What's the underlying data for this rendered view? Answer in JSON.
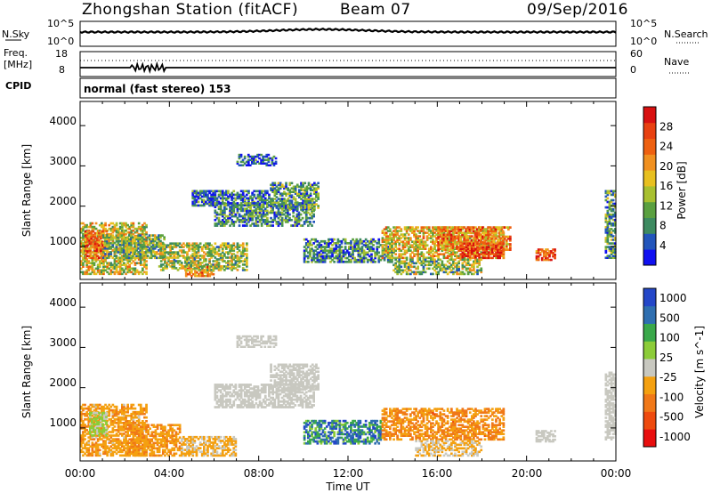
{
  "header": {
    "station": "Zhongshan Station (fitACF)",
    "beam": "Beam 07",
    "date": "09/Sep/2016"
  },
  "strip1": {
    "left_label": "N.Sky",
    "left_ticks": [
      "10^5",
      "10^0"
    ],
    "right_label": "N.Search",
    "right_ticks": [
      "10^5",
      "10^0"
    ]
  },
  "strip2": {
    "left_label_1": "Freq.",
    "left_label_2": "[MHz]",
    "left_ticks": [
      "18",
      "8"
    ],
    "right_label": "Nave",
    "right_ticks": [
      "60",
      "0"
    ],
    "cpid_label": "CPID",
    "cpid_text": "normal (fast stereo) 153"
  },
  "colors": {
    "power": [
      "#1010f0",
      "#2255bb",
      "#3d8a60",
      "#5aa040",
      "#a8c030",
      "#e8c020",
      "#f09020",
      "#ee6010",
      "#e84010",
      "#d81010"
    ],
    "velocity": [
      "#e80e0e",
      "#ee4a0e",
      "#f07818",
      "#f4a010",
      "#c8c8c0",
      "#8ccc38",
      "#3aa84a",
      "#2f6fb0",
      "#2447c8"
    ]
  },
  "chart_data": [
    {
      "type": "heatmap",
      "title": "Power",
      "ylabel": "Slant Range [km]",
      "xlabel": "",
      "x_ticks": [
        "00:00",
        "04:00",
        "08:00",
        "12:00",
        "16:00",
        "20:00",
        "00:00"
      ],
      "y_ticks": [
        "1000",
        "2000",
        "3000",
        "4000"
      ],
      "ylim": [
        180,
        4600
      ],
      "xlim_hours": [
        0,
        24
      ],
      "colorbar_label": "Power [dB]",
      "colorbar_ticks": [
        "4",
        "8",
        "12",
        "16",
        "20",
        "24",
        "28"
      ],
      "value_range": [
        0,
        32
      ],
      "regions": [
        {
          "t0": 0.0,
          "t1": 3.0,
          "r0": 300,
          "r1": 1600,
          "v": 16
        },
        {
          "t0": 0.2,
          "t1": 1.3,
          "r0": 700,
          "r1": 1400,
          "v": 24
        },
        {
          "t0": 1.0,
          "t1": 3.8,
          "r0": 700,
          "r1": 1300,
          "v": 12
        },
        {
          "t0": 4.7,
          "t1": 6.0,
          "r0": 250,
          "r1": 550,
          "v": 22
        },
        {
          "t0": 3.5,
          "t1": 7.5,
          "r0": 400,
          "r1": 1100,
          "v": 14
        },
        {
          "t0": 5.0,
          "t1": 8.5,
          "r0": 2000,
          "r1": 2400,
          "v": 6
        },
        {
          "t0": 6.0,
          "t1": 10.5,
          "r0": 1500,
          "r1": 2100,
          "v": 8
        },
        {
          "t0": 8.5,
          "t1": 10.7,
          "r0": 1900,
          "r1": 2600,
          "v": 10
        },
        {
          "t0": 7.0,
          "t1": 8.8,
          "r0": 3000,
          "r1": 3300,
          "v": 5
        },
        {
          "t0": 10.0,
          "t1": 14.0,
          "r0": 600,
          "r1": 1200,
          "v": 8
        },
        {
          "t0": 13.5,
          "t1": 19.0,
          "r0": 700,
          "r1": 1500,
          "v": 18
        },
        {
          "t0": 16.0,
          "t1": 19.3,
          "r0": 900,
          "r1": 1500,
          "v": 22
        },
        {
          "t0": 17.0,
          "t1": 19.0,
          "r0": 700,
          "r1": 1100,
          "v": 28
        },
        {
          "t0": 14.0,
          "t1": 18.0,
          "r0": 300,
          "r1": 700,
          "v": 13
        },
        {
          "t0": 20.4,
          "t1": 21.3,
          "r0": 650,
          "r1": 950,
          "v": 26
        },
        {
          "t0": 23.5,
          "t1": 24.0,
          "r0": 700,
          "r1": 2400,
          "v": 9
        }
      ]
    },
    {
      "type": "heatmap",
      "title": "Velocity",
      "ylabel": "Slant Range [km]",
      "xlabel": "Time UT",
      "x_ticks": [
        "00:00",
        "04:00",
        "08:00",
        "12:00",
        "16:00",
        "20:00",
        "00:00"
      ],
      "y_ticks": [
        "1000",
        "2000",
        "3000",
        "4000"
      ],
      "ylim": [
        180,
        4600
      ],
      "xlim_hours": [
        0,
        24
      ],
      "colorbar_label": "Velocity [m s^-1]",
      "colorbar_ticks": [
        "1000",
        "500",
        "100",
        "25",
        "-25",
        "-100",
        "-500",
        "-1000"
      ],
      "value_range": [
        -1000,
        1000
      ],
      "regions": [
        {
          "t0": 0.0,
          "t1": 3.0,
          "r0": 300,
          "r1": 1600,
          "v": -250
        },
        {
          "t0": 0.4,
          "t1": 1.2,
          "r0": 800,
          "r1": 1400,
          "v": 150
        },
        {
          "t0": 2.0,
          "t1": 4.5,
          "r0": 300,
          "r1": 1100,
          "v": -300
        },
        {
          "t0": 4.5,
          "t1": 7.0,
          "r0": 300,
          "r1": 800,
          "v": -150
        },
        {
          "t0": 6.0,
          "t1": 10.5,
          "r0": 1500,
          "r1": 2100,
          "v": 0
        },
        {
          "t0": 8.5,
          "t1": 10.7,
          "r0": 1900,
          "r1": 2600,
          "v": 0
        },
        {
          "t0": 7.0,
          "t1": 8.8,
          "r0": 3000,
          "r1": 3300,
          "v": 0
        },
        {
          "t0": 10.0,
          "t1": 13.5,
          "r0": 600,
          "r1": 1200,
          "v": 600
        },
        {
          "t0": 13.5,
          "t1": 19.0,
          "r0": 700,
          "r1": 1500,
          "v": -350
        },
        {
          "t0": 15.0,
          "t1": 18.0,
          "r0": 300,
          "r1": 700,
          "v": -120
        },
        {
          "t0": 20.4,
          "t1": 21.3,
          "r0": 650,
          "r1": 950,
          "v": 60
        },
        {
          "t0": 23.5,
          "t1": 24.0,
          "r0": 700,
          "r1": 2400,
          "v": -60
        }
      ]
    }
  ]
}
